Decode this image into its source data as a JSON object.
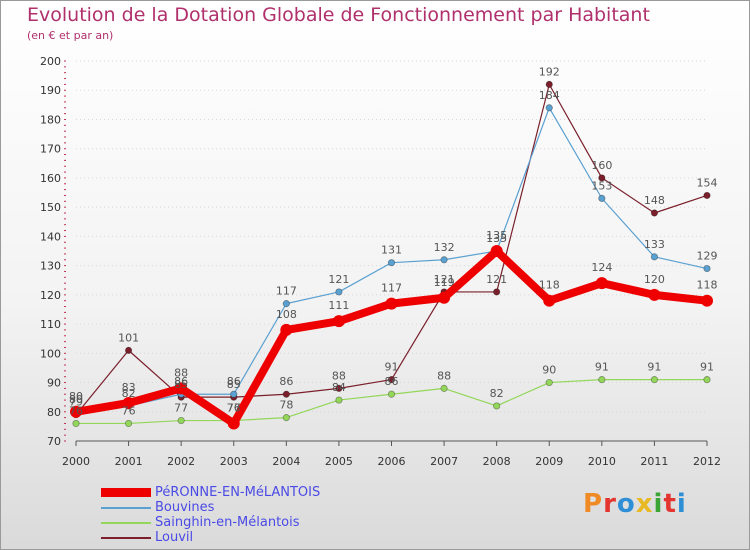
{
  "title": "Evolution de la Dotation Globale de Fonctionnement par Habitant",
  "subtitle": "(en € et par an)",
  "logo": {
    "text": "Proxiti",
    "colors": [
      "#f08a24",
      "#e3342f",
      "#2f8fd6",
      "#e8b923",
      "#3aa535",
      "#e3342f",
      "#2f8fd6"
    ]
  },
  "chart_data": {
    "type": "line",
    "title": "Evolution de la Dotation Globale de Fonctionnement par Habitant",
    "subtitle": "(en € et par an)",
    "xlabel": "",
    "ylabel": "",
    "x": [
      "2000",
      "2001",
      "2002",
      "2003",
      "2004",
      "2005",
      "2006",
      "2007",
      "2008",
      "2009",
      "2010",
      "2011",
      "2012"
    ],
    "ylim": [
      70,
      200
    ],
    "yticks": [
      70,
      80,
      90,
      100,
      110,
      120,
      130,
      140,
      150,
      160,
      170,
      180,
      190,
      200
    ],
    "series": [
      {
        "name": "Louvil",
        "color": "#7a1f2b",
        "values": [
          79,
          101,
          85,
          85,
          86,
          88,
          91,
          121,
          121,
          192,
          160,
          148,
          154
        ]
      },
      {
        "name": "Bouvines",
        "color": "#5aa0d0",
        "values": [
          80,
          82,
          86,
          86,
          117,
          121,
          131,
          132,
          135,
          184,
          153,
          133,
          129
        ]
      },
      {
        "name": "Sainghin-en-Mélantois",
        "color": "#93d65a",
        "values": [
          76,
          76,
          77,
          77,
          78,
          84,
          86,
          88,
          82,
          90,
          91,
          91,
          91
        ]
      },
      {
        "name": "PéRONNE-EN-MéLANTOIS",
        "color": "#ee0000",
        "values": [
          80,
          83,
          88,
          76,
          108,
          111,
          117,
          119,
          135,
          118,
          124,
          120,
          118
        ]
      }
    ],
    "legend": {
      "position": "bottom-left",
      "entries": [
        "PéRONNE-EN-MéLANTOIS",
        "Bouvines",
        "Sainghin-en-Mélantois",
        "Louvil"
      ]
    }
  }
}
